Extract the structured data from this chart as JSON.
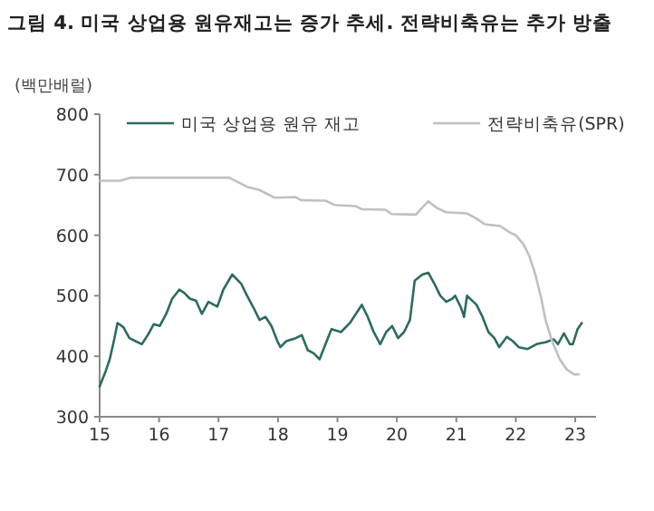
{
  "chart_data": {
    "type": "line",
    "title": "그림 4. 미국 상업용 원유재고는 증가 추세. 전략비축유는 추가 방출",
    "ylabel": "(백만배럴)",
    "xlim": [
      15,
      23.35
    ],
    "xticks": [
      15,
      16,
      17,
      18,
      19,
      20,
      21,
      22,
      23
    ],
    "ylim": [
      300,
      800
    ],
    "yticks": [
      300,
      400,
      500,
      600,
      700,
      800
    ],
    "legend": "top",
    "grid": false,
    "marker": "none",
    "line_style": "solid",
    "series": [
      {
        "name": "미국 상업용 원유 재고",
        "color": "#2e6b5e",
        "x": [
          15.0,
          15.1,
          15.17,
          15.25,
          15.3,
          15.4,
          15.5,
          15.6,
          15.71,
          15.81,
          15.91,
          16.01,
          16.12,
          16.22,
          16.34,
          16.42,
          16.52,
          16.62,
          16.72,
          16.83,
          16.98,
          17.08,
          17.23,
          17.38,
          17.48,
          17.59,
          17.69,
          17.79,
          17.89,
          17.99,
          18.04,
          18.14,
          18.3,
          18.4,
          18.5,
          18.6,
          18.7,
          18.8,
          18.9,
          19.06,
          19.21,
          19.31,
          19.41,
          19.51,
          19.61,
          19.72,
          19.82,
          19.92,
          20.02,
          20.12,
          20.22,
          20.3,
          20.43,
          20.53,
          20.63,
          20.73,
          20.83,
          20.93,
          20.98,
          21.08,
          21.13,
          21.18,
          21.34,
          21.44,
          21.54,
          21.64,
          21.72,
          21.85,
          21.95,
          22.05,
          22.2,
          22.35,
          22.5,
          22.64,
          22.71,
          22.81,
          22.91,
          22.96,
          23.04,
          23.11
        ],
        "values": [
          350,
          375,
          395,
          430,
          455,
          448,
          430,
          425,
          420,
          435,
          453,
          450,
          470,
          495,
          510,
          505,
          495,
          492,
          470,
          490,
          482,
          510,
          535,
          520,
          500,
          480,
          460,
          465,
          450,
          425,
          415,
          425,
          430,
          435,
          410,
          405,
          395,
          420,
          445,
          440,
          455,
          470,
          485,
          465,
          440,
          420,
          440,
          450,
          430,
          440,
          460,
          525,
          535,
          538,
          520,
          500,
          490,
          495,
          500,
          480,
          465,
          500,
          485,
          465,
          440,
          430,
          415,
          432,
          425,
          415,
          412,
          420,
          423,
          428,
          420,
          438,
          420,
          420,
          445,
          455
        ]
      },
      {
        "name": "전략비축유(SPR)",
        "color": "#c0c0c0",
        "x": [
          15.0,
          15.35,
          15.51,
          17.18,
          17.48,
          17.68,
          17.94,
          18.29,
          18.39,
          18.8,
          18.95,
          19.31,
          19.41,
          19.81,
          19.91,
          20.32,
          20.42,
          20.53,
          20.67,
          20.83,
          21.18,
          21.33,
          21.48,
          21.74,
          21.89,
          22.0,
          22.13,
          22.23,
          22.33,
          22.43,
          22.5,
          22.61,
          22.74,
          22.86,
          22.98,
          23.06
        ],
        "values": [
          690,
          690,
          695,
          695,
          680,
          675,
          662,
          663,
          658,
          657,
          650,
          648,
          643,
          642,
          635,
          634,
          645,
          656,
          645,
          638,
          636,
          628,
          618,
          615,
          605,
          600,
          585,
          565,
          535,
          495,
          460,
          425,
          395,
          378,
          370,
          370
        ]
      }
    ]
  }
}
